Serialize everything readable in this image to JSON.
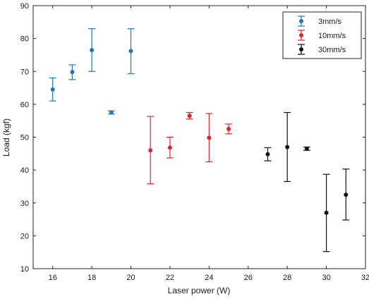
{
  "chart_data": {
    "type": "scatter",
    "xlabel": "Laser power (W)",
    "ylabel": "Load (kgf)",
    "xlim": [
      15,
      32
    ],
    "ylim": [
      10,
      90
    ],
    "xticks": [
      16,
      18,
      20,
      22,
      24,
      26,
      28,
      30,
      32
    ],
    "yticks": [
      10,
      20,
      30,
      40,
      50,
      60,
      70,
      80,
      90
    ],
    "grid": false,
    "legend_position": "top-right",
    "series": [
      {
        "name": "3mm/s",
        "color": "#1f77b4",
        "points": [
          {
            "x": 16,
            "y": 64.5,
            "low": 61.0,
            "high": 68.0
          },
          {
            "x": 17,
            "y": 69.8,
            "low": 67.5,
            "high": 72.0
          },
          {
            "x": 18,
            "y": 76.5,
            "low": 70.0,
            "high": 83.0
          },
          {
            "x": 19,
            "y": 57.5,
            "low": 57.0,
            "high": 58.0
          },
          {
            "x": 20,
            "y": 76.2,
            "low": 69.3,
            "high": 83.0
          }
        ]
      },
      {
        "name": "10mm/s",
        "color": "#e0242a",
        "points": [
          {
            "x": 21,
            "y": 46.0,
            "low": 35.8,
            "high": 56.3
          },
          {
            "x": 22,
            "y": 46.8,
            "low": 43.7,
            "high": 50.0
          },
          {
            "x": 23,
            "y": 56.5,
            "low": 55.5,
            "high": 57.5
          },
          {
            "x": 24,
            "y": 49.8,
            "low": 42.5,
            "high": 57.2
          },
          {
            "x": 25,
            "y": 52.5,
            "low": 51.0,
            "high": 54.0
          }
        ]
      },
      {
        "name": "30mm/s",
        "color": "#111111",
        "points": [
          {
            "x": 27,
            "y": 44.8,
            "low": 42.8,
            "high": 46.8
          },
          {
            "x": 28,
            "y": 47.0,
            "low": 36.5,
            "high": 57.5
          },
          {
            "x": 29,
            "y": 46.5,
            "low": 46.0,
            "high": 47.0
          },
          {
            "x": 30,
            "y": 27.0,
            "low": 15.2,
            "high": 38.7
          },
          {
            "x": 31,
            "y": 32.5,
            "low": 24.8,
            "high": 40.3
          }
        ]
      }
    ]
  }
}
